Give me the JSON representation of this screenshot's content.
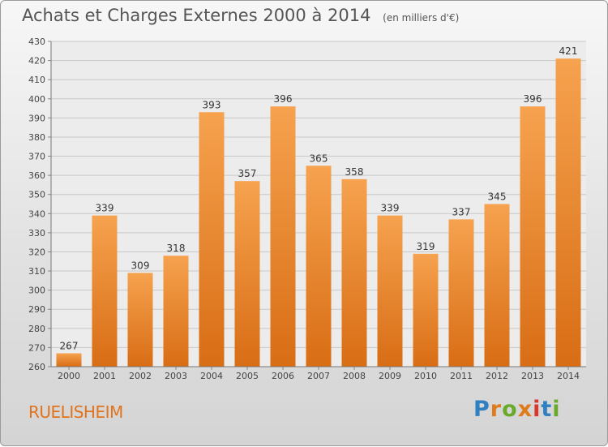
{
  "title": "Achats et Charges Externes 2000 à 2014",
  "subtitle": "(en milliers d'€)",
  "city": "RUELISHEIM",
  "logo": {
    "letters": [
      "P",
      "r",
      "o",
      "x",
      "i",
      "t",
      "i"
    ],
    "colors": [
      "#2f7fc1",
      "#e07b1c",
      "#6aaa2a",
      "#e07b1c",
      "#d8372e",
      "#2f7fc1",
      "#6aaa2a"
    ]
  },
  "colors": {
    "bar_light": "#f6a24f",
    "bar_dark": "#d86d14",
    "grid": "#c8c8c8",
    "plot_bg": "#ececec"
  },
  "chart_data": {
    "type": "bar",
    "categories": [
      "2000",
      "2001",
      "2002",
      "2003",
      "2004",
      "2005",
      "2006",
      "2007",
      "2008",
      "2009",
      "2010",
      "2011",
      "2012",
      "2013",
      "2014"
    ],
    "values": [
      267,
      339,
      309,
      318,
      393,
      357,
      396,
      365,
      358,
      339,
      319,
      337,
      345,
      396,
      421
    ],
    "ylim": [
      260,
      430
    ],
    "yticks": [
      260,
      270,
      280,
      290,
      300,
      310,
      320,
      330,
      340,
      350,
      360,
      370,
      380,
      390,
      400,
      410,
      420,
      430
    ],
    "grid": true,
    "data_labels": true
  }
}
